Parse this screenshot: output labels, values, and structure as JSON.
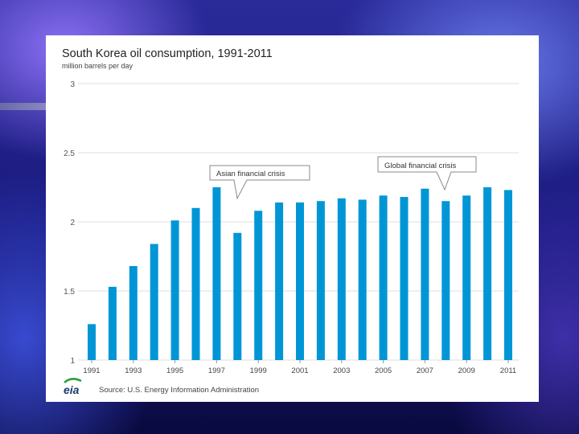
{
  "chart_data": {
    "type": "bar",
    "title": "South Korea oil consumption, 1991-2011",
    "ylabel": "million barrels per day",
    "xlabel": "",
    "ylim": [
      1,
      3
    ],
    "yticks": [
      1,
      1.5,
      2,
      2.5,
      3
    ],
    "ytick_labels": [
      "1",
      "1.5",
      "2",
      "2.5",
      "3"
    ],
    "categories": [
      "1991",
      "1992",
      "1993",
      "1994",
      "1995",
      "1996",
      "1997",
      "1998",
      "1999",
      "2000",
      "2001",
      "2002",
      "2003",
      "2004",
      "2005",
      "2006",
      "2007",
      "2008",
      "2009",
      "2010",
      "2011"
    ],
    "values": [
      1.26,
      1.53,
      1.68,
      1.84,
      2.01,
      2.1,
      2.25,
      1.92,
      2.08,
      2.14,
      2.14,
      2.15,
      2.17,
      2.16,
      2.19,
      2.18,
      2.24,
      2.15,
      2.19,
      2.25,
      2.23
    ],
    "xtick_labels": [
      "1991",
      "1993",
      "1995",
      "1997",
      "1999",
      "2001",
      "2003",
      "2005",
      "2007",
      "2009",
      "2011"
    ],
    "annotations": [
      {
        "text": "Asian financial crisis",
        "year": "1998"
      },
      {
        "text": "Global financial crisis",
        "year": "2008"
      }
    ],
    "grid": true,
    "legend": "none"
  },
  "footer": {
    "logo_text": "eia",
    "source": "Source: U.S. Energy Information Administration"
  },
  "colors": {
    "bar": "#0096d6",
    "logo_arc": "#2a9d3a"
  }
}
